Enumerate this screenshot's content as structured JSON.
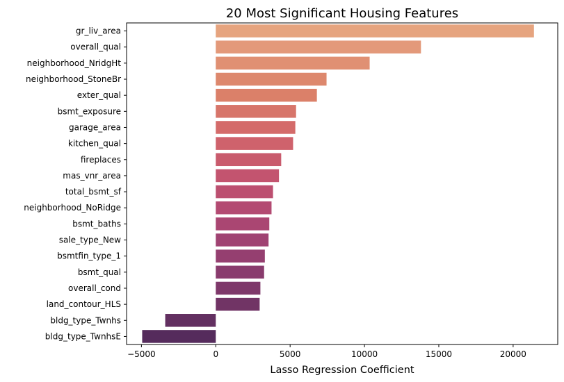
{
  "chart_data": {
    "type": "bar",
    "orientation": "horizontal",
    "title": "20 Most Significant Housing Features",
    "xlabel": "Lasso Regression Coefficient",
    "ylabel": "",
    "xlim": [
      -6000,
      23000
    ],
    "xticks": [
      -5000,
      0,
      5000,
      10000,
      15000,
      20000
    ],
    "grid": false,
    "palette": "flare",
    "categories": [
      "gr_liv_area",
      "overall_qual",
      "neighborhood_NridgHt",
      "neighborhood_StoneBr",
      "exter_qual",
      "bsmt_exposure",
      "garage_area",
      "kitchen_qual",
      "fireplaces",
      "mas_vnr_area",
      "total_bsmt_sf",
      "neighborhood_NoRidge",
      "bsmt_baths",
      "sale_type_New",
      "bsmtfin_type_1",
      "bsmt_qual",
      "overall_cond",
      "land_contour_HLS",
      "bldg_type_Twnhs",
      "bldg_type_TwnhsE"
    ],
    "values": [
      21400,
      13800,
      10350,
      7450,
      6800,
      5400,
      5350,
      5200,
      4400,
      4250,
      3850,
      3750,
      3600,
      3550,
      3300,
      3250,
      3000,
      2950,
      -3400,
      -4950
    ],
    "colors": [
      "#e6a47f",
      "#e3997a",
      "#e09073",
      "#dd886d",
      "#db8069",
      "#d7756a",
      "#d46b6a",
      "#cf626c",
      "#c95b6d",
      "#c3546f",
      "#bc4f70",
      "#b34a72",
      "#aa4672",
      "#a04272",
      "#953f70",
      "#893b6d",
      "#7e386a",
      "#713465",
      "#633061",
      "#552b5c"
    ]
  }
}
